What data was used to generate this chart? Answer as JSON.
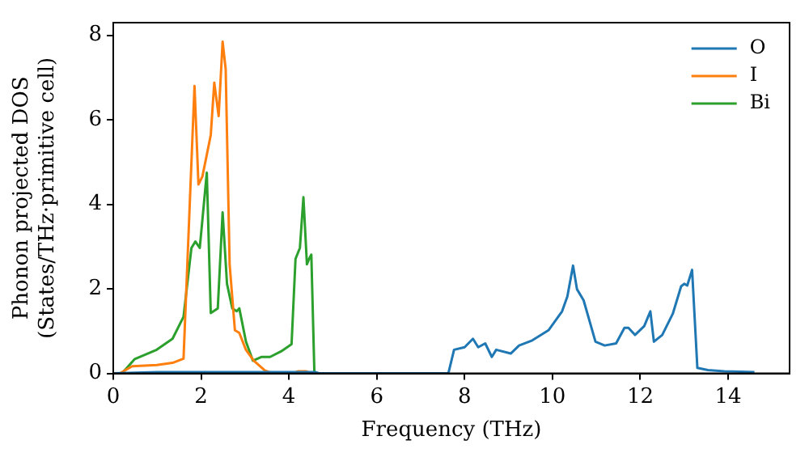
{
  "chart_data": {
    "type": "line",
    "xlabel": "Frequency (THz)",
    "ylabel": "Phonon projected DOS\n(States/THz·primitive cell)",
    "xlim": [
      0,
      15.4
    ],
    "ylim": [
      0,
      8.3
    ],
    "xticks": [
      0,
      2,
      4,
      6,
      8,
      10,
      12,
      14
    ],
    "yticks": [
      0,
      2,
      4,
      6,
      8
    ],
    "grid": false,
    "legend": "top right",
    "marker": "none",
    "line_style": "solid",
    "series": [
      {
        "name": "O",
        "color": "#1f77b4",
        "x": [
          0,
          1,
          2,
          3,
          4,
          4.6,
          4.7,
          7.5,
          7.63,
          7.76,
          8.0,
          8.19,
          8.31,
          8.47,
          8.62,
          8.72,
          9.05,
          9.24,
          9.54,
          9.91,
          10.22,
          10.34,
          10.47,
          10.56,
          10.71,
          10.98,
          11.19,
          11.45,
          11.64,
          11.73,
          11.88,
          12.09,
          12.23,
          12.31,
          12.5,
          12.74,
          12.93,
          13.0,
          13.07,
          13.18,
          13.3,
          13.54,
          13.91,
          14.28,
          14.6
        ],
        "values": [
          0,
          0.03,
          0.03,
          0.03,
          0.03,
          0.03,
          0,
          0,
          0,
          0.56,
          0.62,
          0.82,
          0.62,
          0.71,
          0.39,
          0.56,
          0.47,
          0.66,
          0.78,
          1.02,
          1.47,
          1.82,
          2.55,
          1.99,
          1.73,
          0.75,
          0.66,
          0.71,
          1.08,
          1.08,
          0.91,
          1.12,
          1.47,
          0.75,
          0.91,
          1.41,
          2.06,
          2.12,
          2.08,
          2.45,
          0.13,
          0.08,
          0.05,
          0.04,
          0.03
        ]
      },
      {
        "name": "I",
        "color": "#ff7f0e",
        "x": [
          0.15,
          0.43,
          0.99,
          1.35,
          1.6,
          1.85,
          1.94,
          2.03,
          2.22,
          2.3,
          2.4,
          2.49,
          2.56,
          2.65,
          2.77,
          2.87,
          3.02,
          3.2,
          3.45,
          3.63,
          4.1,
          4.2,
          4.4,
          4.5
        ],
        "values": [
          0,
          0.17,
          0.2,
          0.25,
          0.35,
          6.8,
          4.47,
          4.66,
          5.64,
          6.88,
          6.09,
          7.85,
          7.2,
          2.58,
          1.02,
          0.96,
          0.56,
          0.3,
          0.07,
          0,
          0,
          0.05,
          0.05,
          0
        ]
      },
      {
        "name": "Bi",
        "color": "#2ca02c",
        "x": [
          0.2,
          0.49,
          0.99,
          1.35,
          1.6,
          1.78,
          1.87,
          1.97,
          2.13,
          2.22,
          2.38,
          2.49,
          2.59,
          2.71,
          2.81,
          2.87,
          3.02,
          3.18,
          3.38,
          3.57,
          3.82,
          4.06,
          4.15,
          4.25,
          4.33,
          4.41,
          4.46,
          4.51,
          4.58
        ],
        "values": [
          0,
          0.34,
          0.56,
          0.82,
          1.34,
          2.97,
          3.12,
          2.97,
          4.75,
          1.43,
          1.54,
          3.81,
          2.12,
          1.54,
          1.47,
          1.54,
          0.76,
          0.3,
          0.39,
          0.39,
          0.52,
          0.69,
          2.71,
          2.97,
          4.17,
          2.58,
          2.71,
          2.81,
          0
        ]
      }
    ]
  }
}
